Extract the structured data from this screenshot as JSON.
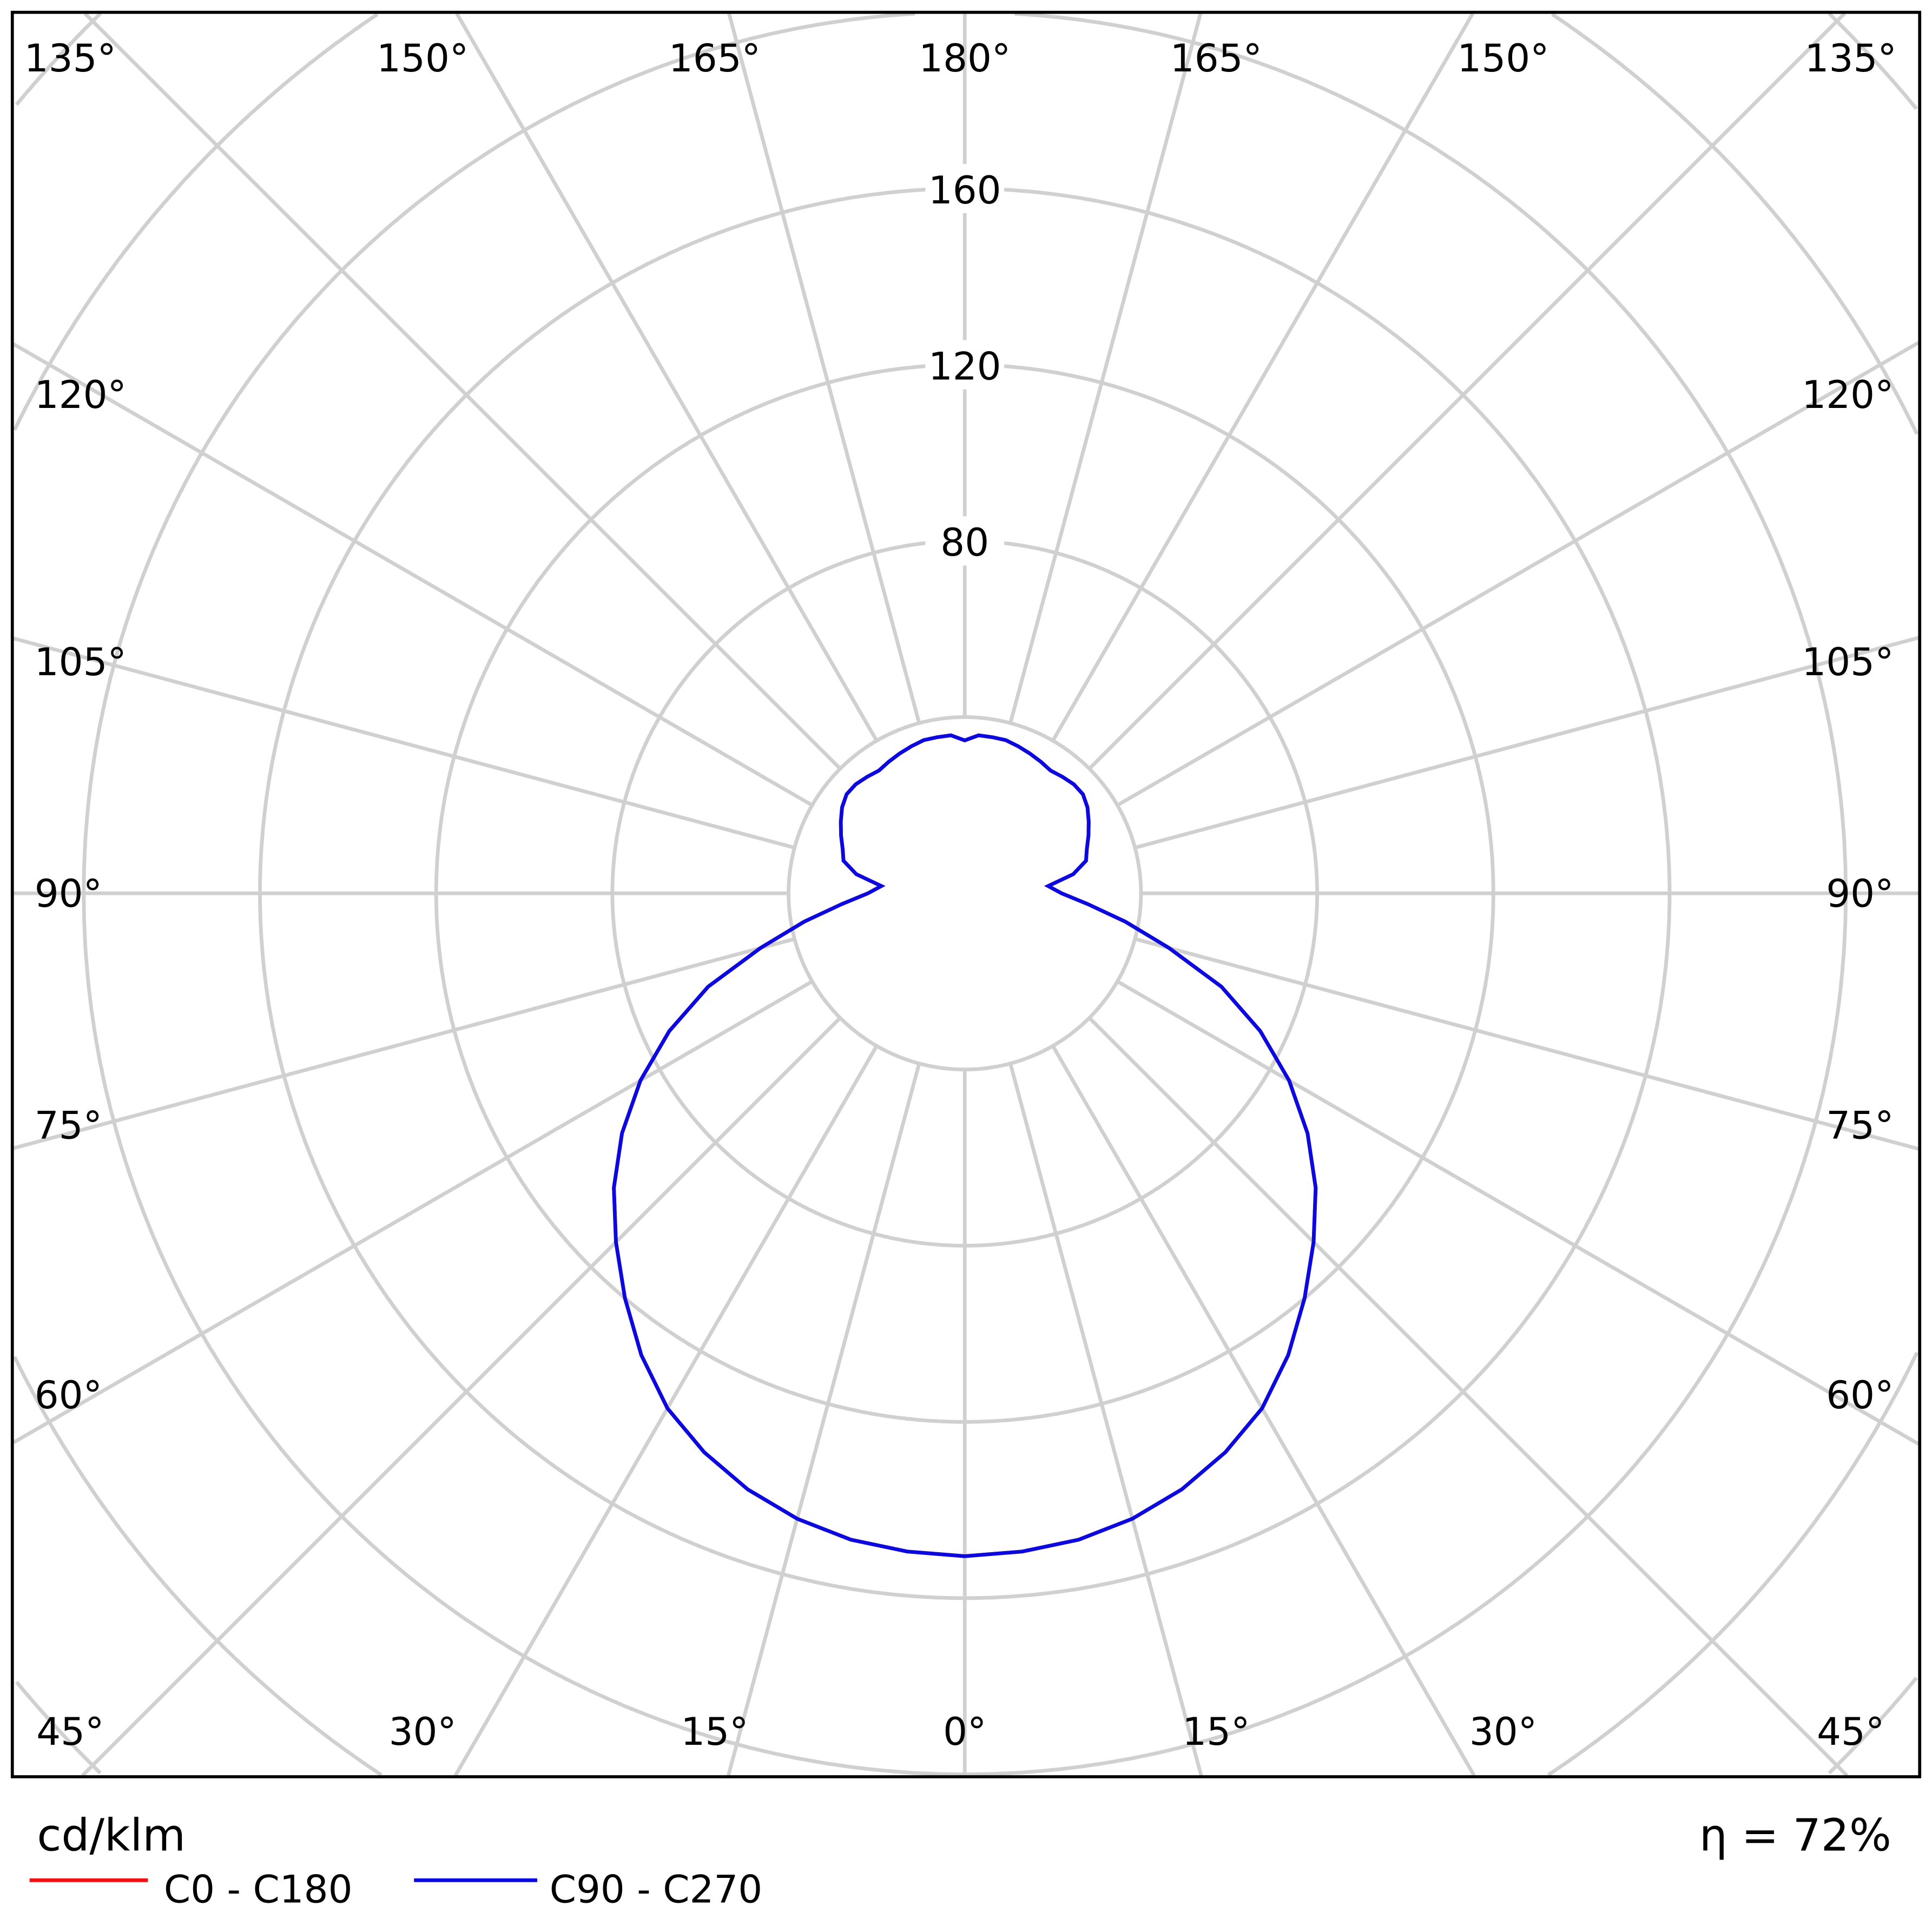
{
  "chart_data": {
    "type": "polar",
    "unit_label": "cd/klm",
    "efficiency_label": "η = 72%",
    "radial_ticks": [
      80,
      120,
      160
    ],
    "radial_rings": [
      40,
      80,
      120,
      160,
      200,
      240,
      280,
      320
    ],
    "angle_labels": {
      "top": [
        "135°",
        "150°",
        "165°",
        "180°",
        "165°",
        "150°",
        "135°"
      ],
      "left": [
        "120°",
        "105°",
        "90°",
        "75°",
        "60°"
      ],
      "right": [
        "120°",
        "105°",
        "90°",
        "75°",
        "60°"
      ],
      "bottom": [
        "45°",
        "30°",
        "15°",
        "0°",
        "15°",
        "30°",
        "45°"
      ]
    },
    "grid": true,
    "angles_deg": [
      0,
      5,
      10,
      15,
      20,
      25,
      30,
      35,
      40,
      45,
      50,
      55,
      60,
      65,
      70,
      75,
      80,
      85,
      90,
      95,
      100,
      105,
      110,
      115,
      120,
      125,
      130,
      135,
      140,
      145,
      150,
      155,
      160,
      165,
      170,
      175,
      180
    ],
    "series": [
      {
        "name": "C0 - C180",
        "color": "#ee1111",
        "values": [
          150.5,
          150,
          149,
          147,
          144,
          140,
          135,
          128,
          120,
          112,
          104,
          95,
          85,
          74,
          62,
          48,
          37,
          28,
          22,
          19,
          25,
          28.5,
          29.5,
          31,
          32.5,
          34,
          35,
          35,
          34.5,
          34,
          34.5,
          35,
          35.5,
          36,
          36,
          36,
          34.7
        ]
      },
      {
        "name": "C90 - C270",
        "color": "#0a0ae0",
        "values": [
          150.5,
          150,
          149,
          147,
          144,
          140,
          135,
          128,
          120,
          112,
          104,
          95,
          85,
          74,
          62,
          48,
          37,
          28,
          22,
          19,
          25,
          28.5,
          29.5,
          31,
          32.5,
          34,
          35,
          35,
          34.5,
          34,
          34.5,
          35,
          35.5,
          36,
          36,
          36,
          34.7
        ]
      }
    ],
    "grid_color": "#d0d0d0"
  }
}
